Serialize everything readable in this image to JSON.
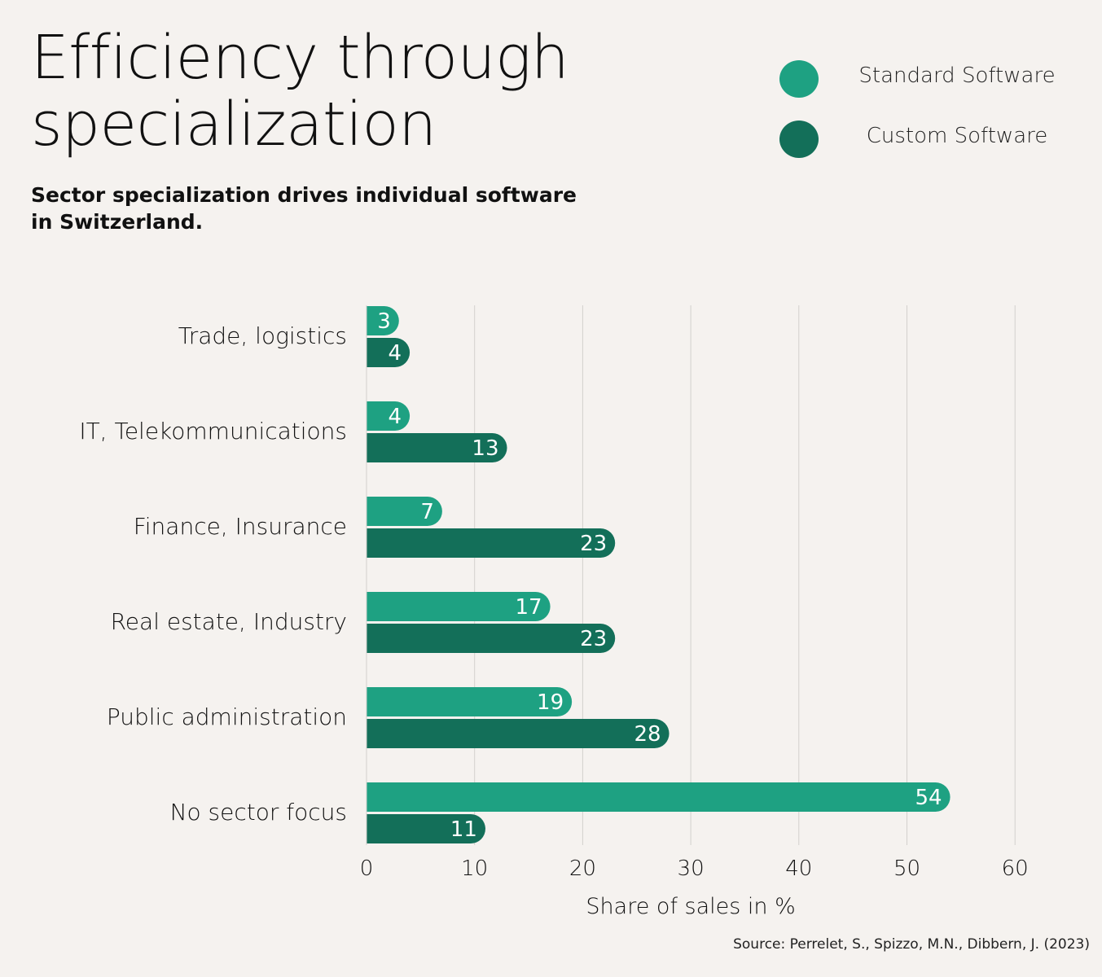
{
  "header": {
    "title": "Efficiency through specialization",
    "subtitle": "Sector specialization drives individual software in Switzerland."
  },
  "legend": [
    {
      "label": "Standard Software",
      "color": "#1ea182"
    },
    {
      "label": "Custom Software",
      "color": "#136f59"
    }
  ],
  "source": "Source: Perrelet, S., Spizzo, M.N., Dibbern, J. (2023)",
  "chart_data": {
    "type": "bar",
    "orientation": "horizontal",
    "title": "Efficiency through specialization",
    "subtitle": "Sector specialization drives individual software in Switzerland.",
    "xlabel": "Share of sales in %",
    "ylabel": "",
    "xlim": [
      0,
      60
    ],
    "xticks": [
      0,
      10,
      20,
      30,
      40,
      50,
      60
    ],
    "grid": "vertical",
    "legend_position": "top-right",
    "categories": [
      "Trade, logistics",
      "IT, Telekommunications",
      "Finance, Insurance",
      "Real estate, Industry",
      "Public administration",
      "No sector focus"
    ],
    "series": [
      {
        "name": "Standard Software",
        "color": "#1ea182",
        "values": [
          3,
          4,
          7,
          17,
          19,
          54
        ]
      },
      {
        "name": "Custom Software",
        "color": "#136f59",
        "values": [
          4,
          13,
          23,
          23,
          28,
          11
        ]
      }
    ]
  }
}
